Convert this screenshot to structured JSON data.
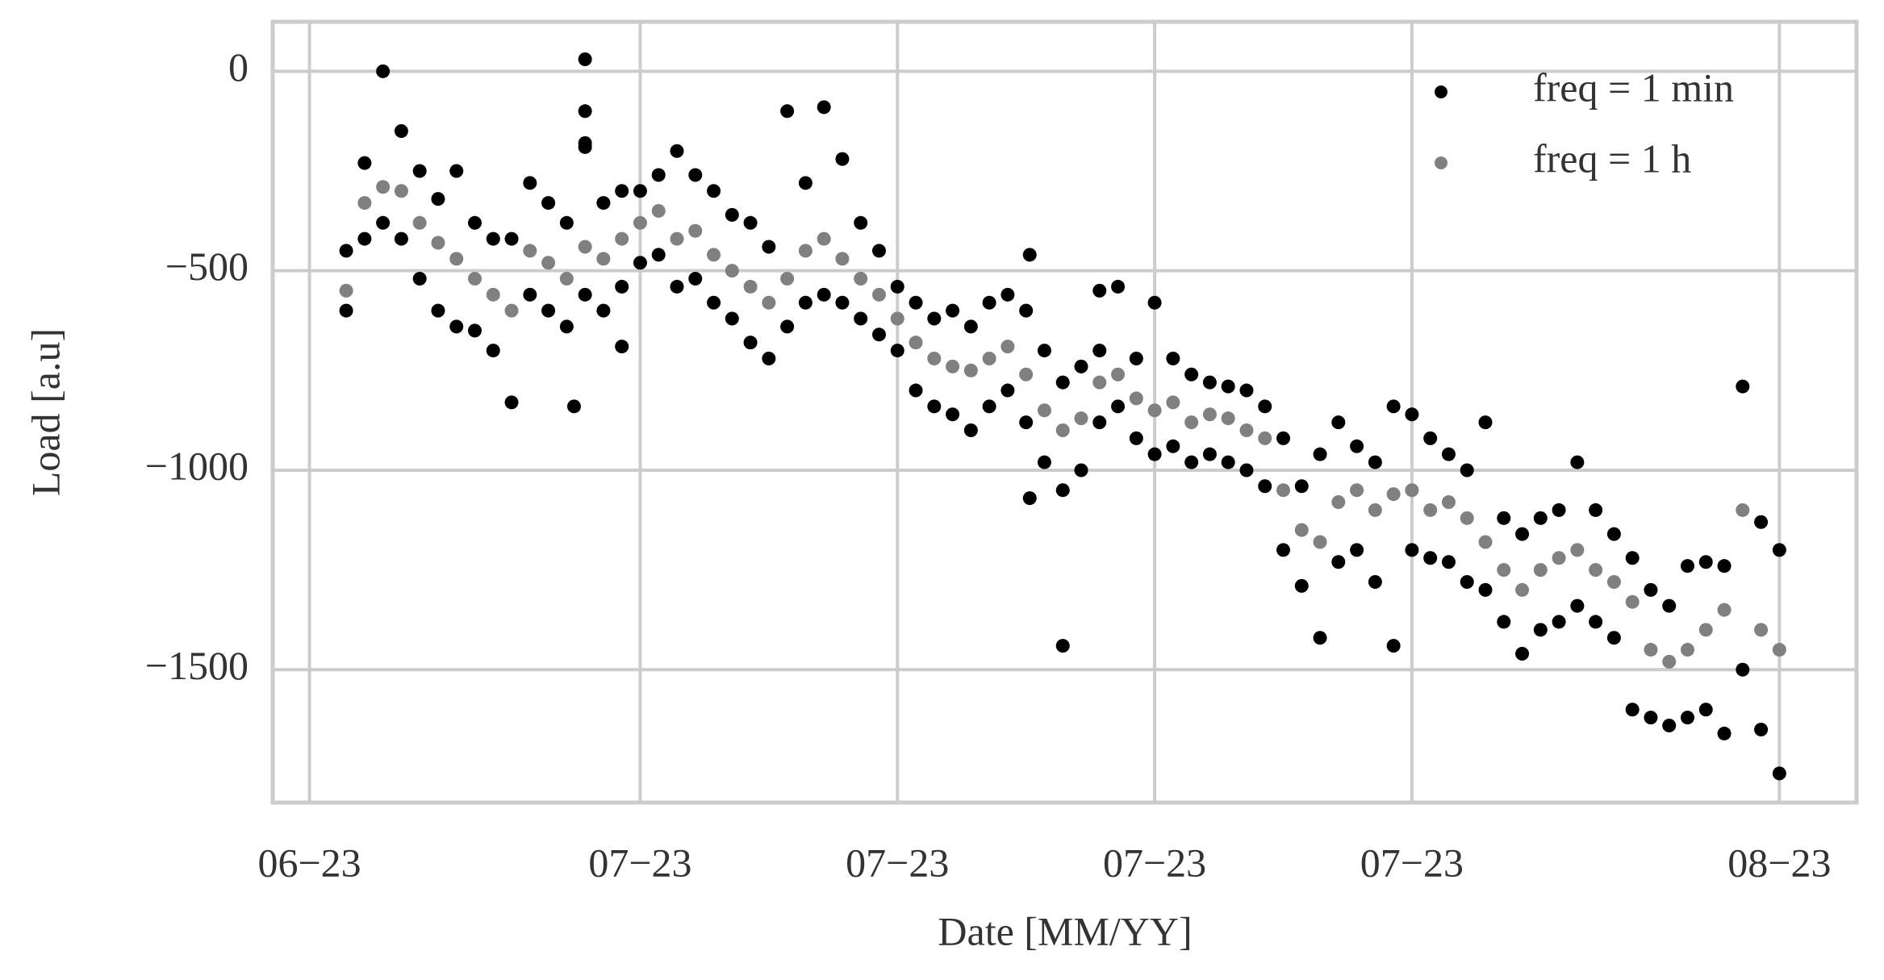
{
  "chart_data": {
    "type": "scatter",
    "xlabel": "Date [MM/YY]",
    "ylabel": "Load [a.u]",
    "xlim": [
      -1,
      42.1
    ],
    "xticks": [
      {
        "value": 0,
        "label": "06−23"
      },
      {
        "value": 9,
        "label": "07−23"
      },
      {
        "value": 16,
        "label": "07−23"
      },
      {
        "value": 23,
        "label": "07−23"
      },
      {
        "value": 30,
        "label": "07−23"
      },
      {
        "value": 40,
        "label": "08−23"
      }
    ],
    "ylim": [
      -1833,
      124
    ],
    "yticks": [
      0,
      {
        "value": -500,
        "label": "−500"
      },
      {
        "value": -1000,
        "label": "−1000"
      },
      {
        "value": -1500,
        "label": "−1500"
      }
    ],
    "grid": true,
    "legend": "upper right",
    "series": [
      {
        "name": "freq = 1 min",
        "color": "#000000",
        "x": [
          1,
          1,
          1.5,
          1.5,
          2,
          2,
          2.5,
          2.5,
          3,
          3,
          3.5,
          3.5,
          4,
          4,
          4.5,
          4.5,
          5,
          5,
          5.5,
          5.5,
          6,
          6,
          6.5,
          6.5,
          7,
          7,
          7.5,
          7.5,
          8,
          8,
          8.5,
          8.5,
          9,
          9,
          9.5,
          9.5,
          10,
          10,
          10.5,
          10.5,
          11,
          11,
          11.5,
          11.5,
          12,
          12,
          12.5,
          12.5,
          13,
          13,
          13.5,
          13.5,
          14,
          14,
          14.5,
          14.5,
          15,
          15,
          15.5,
          15.5,
          16,
          16,
          16.5,
          16.5,
          17,
          17,
          17.5,
          17.5,
          18,
          18,
          18.5,
          18.5,
          19,
          19,
          19.5,
          19.5,
          20,
          20,
          20.5,
          20.5,
          21,
          21,
          21.5,
          21.5,
          22,
          22,
          22.5,
          22.5,
          23,
          23,
          23.5,
          23.5,
          24,
          24,
          24.5,
          24.5,
          25,
          25,
          25.5,
          25.5,
          26,
          26,
          26.5,
          26.5,
          27,
          27,
          27.5,
          27.5,
          28,
          28,
          28.5,
          28.5,
          29,
          29,
          29.5,
          29.5,
          30,
          30,
          30.5,
          30.5,
          31,
          31,
          31.5,
          31.5,
          32,
          32,
          32.5,
          32.5,
          33,
          33,
          33.5,
          33.5,
          34,
          34,
          34.5,
          34.5,
          35,
          35,
          35.5,
          35.5,
          36,
          36,
          36.5,
          36.5,
          37,
          37,
          37.5,
          37.5,
          38,
          38,
          38.5,
          38.5,
          39,
          39,
          39.5,
          39.5,
          40,
          40,
          7.2,
          7.5,
          7.5,
          7.5,
          8.5,
          19.6,
          19.6,
          20.5,
          21.5
        ],
        "values": [
          -450,
          -600,
          -230,
          -420,
          0,
          -380,
          -150,
          -420,
          -250,
          -520,
          -320,
          -600,
          -250,
          -640,
          -380,
          -650,
          -420,
          -700,
          -420,
          -830,
          -280,
          -560,
          -330,
          -600,
          -380,
          -640,
          -190,
          -560,
          -330,
          -600,
          -300,
          -540,
          -300,
          -480,
          -260,
          -460,
          -200,
          -540,
          -260,
          -520,
          -300,
          -580,
          -360,
          -620,
          -380,
          -680,
          -440,
          -720,
          -100,
          -640,
          -280,
          -580,
          -90,
          -560,
          -220,
          -580,
          -380,
          -620,
          -450,
          -660,
          -540,
          -700,
          -580,
          -800,
          -620,
          -840,
          -600,
          -860,
          -640,
          -900,
          -580,
          -840,
          -560,
          -800,
          -600,
          -880,
          -700,
          -980,
          -780,
          -1050,
          -740,
          -1000,
          -700,
          -880,
          -540,
          -840,
          -720,
          -920,
          -580,
          -960,
          -720,
          -940,
          -760,
          -980,
          -780,
          -960,
          -790,
          -980,
          -800,
          -1000,
          -840,
          -1040,
          -920,
          -1200,
          -1040,
          -1290,
          -960,
          -1420,
          -880,
          -1230,
          -940,
          -1200,
          -980,
          -1280,
          -840,
          -1440,
          -860,
          -1200,
          -920,
          -1220,
          -960,
          -1230,
          -1000,
          -1280,
          -880,
          -1300,
          -1120,
          -1380,
          -1160,
          -1460,
          -1120,
          -1400,
          -1100,
          -1380,
          -980,
          -1340,
          -1100,
          -1380,
          -1160,
          -1420,
          -1220,
          -1600,
          -1300,
          -1620,
          -1340,
          -1640,
          -1240,
          -1620,
          -1230,
          -1600,
          -1240,
          -1660,
          -790,
          -1500,
          -1130,
          -1650,
          -1200,
          -1760,
          -840,
          30,
          -100,
          -180,
          -690,
          -460,
          -1070,
          -1440,
          -550
        ]
      },
      {
        "name": "freq = 1 h",
        "color": "#808080",
        "x": [
          1,
          1.5,
          2,
          2.5,
          3,
          3.5,
          4,
          4.5,
          5,
          5.5,
          6,
          6.5,
          7,
          7.5,
          8,
          8.5,
          9,
          9.5,
          10,
          10.5,
          11,
          11.5,
          12,
          12.5,
          13,
          13.5,
          14,
          14.5,
          15,
          15.5,
          16,
          16.5,
          17,
          17.5,
          18,
          18.5,
          19,
          19.5,
          20,
          20.5,
          21,
          21.5,
          22,
          22.5,
          23,
          23.5,
          24,
          24.5,
          25,
          25.5,
          26,
          26.5,
          27,
          27.5,
          28,
          28.5,
          29,
          29.5,
          30,
          30.5,
          31,
          31.5,
          32,
          32.5,
          33,
          33.5,
          34,
          34.5,
          35,
          35.5,
          36,
          36.5,
          37,
          37.5,
          38,
          38.5,
          39,
          39.5,
          40
        ],
        "values": [
          -550,
          -330,
          -290,
          -300,
          -380,
          -430,
          -470,
          -520,
          -560,
          -600,
          -450,
          -480,
          -520,
          -440,
          -470,
          -420,
          -380,
          -350,
          -420,
          -400,
          -460,
          -500,
          -540,
          -580,
          -520,
          -450,
          -420,
          -470,
          -520,
          -560,
          -620,
          -680,
          -720,
          -740,
          -750,
          -720,
          -690,
          -760,
          -850,
          -900,
          -870,
          -780,
          -760,
          -820,
          -850,
          -830,
          -880,
          -860,
          -870,
          -900,
          -920,
          -1050,
          -1150,
          -1180,
          -1080,
          -1050,
          -1100,
          -1060,
          -1050,
          -1100,
          -1080,
          -1120,
          -1180,
          -1250,
          -1300,
          -1250,
          -1220,
          -1200,
          -1250,
          -1280,
          -1330,
          -1450,
          -1480,
          -1450,
          -1400,
          -1350,
          -1100,
          -1400,
          -1450
        ]
      }
    ]
  }
}
